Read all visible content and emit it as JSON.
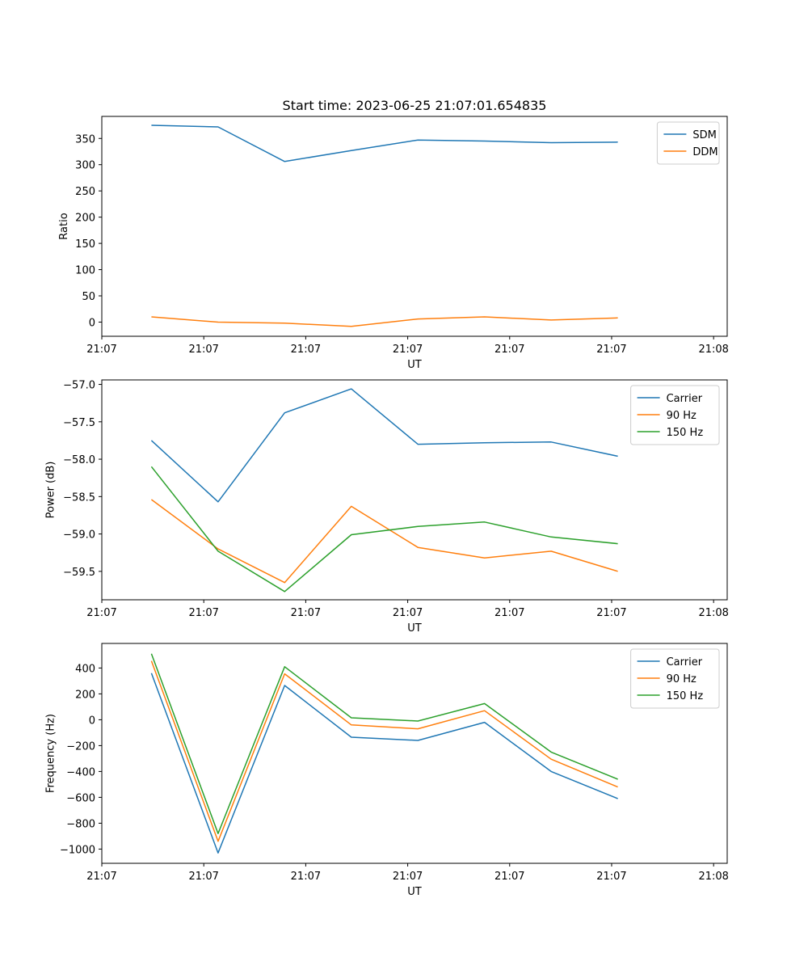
{
  "figure": {
    "title": "Start time: 2023-06-25 21:07:01.654835"
  },
  "colors": {
    "series1": "#1f77b4",
    "series2": "#ff7f0e",
    "series3": "#2ca02c",
    "axes": "#000000",
    "legend_border": "#cccccc"
  },
  "chart_data": [
    {
      "id": "ratio",
      "type": "line",
      "title": "Start time: 2023-06-25 21:07:01.654835",
      "xlabel": "UT",
      "ylabel": "Ratio",
      "xlim": [
        0,
        9.2
      ],
      "ylim": [
        -27,
        392
      ],
      "x_tick_positions": [
        0,
        1.5,
        3,
        4.5,
        6,
        7.5,
        9
      ],
      "x_tick_labels": [
        "21:07",
        "21:07",
        "21:07",
        "21:07",
        "21:07",
        "21:07",
        "21:08"
      ],
      "y_ticks": [
        0,
        50,
        100,
        150,
        200,
        250,
        300,
        350
      ],
      "y_tick_labels": [
        "0",
        "50",
        "100",
        "150",
        "200",
        "250",
        "300",
        "350"
      ],
      "x": [
        0.73,
        1.71,
        2.69,
        3.67,
        4.65,
        5.63,
        6.61,
        7.59
      ],
      "series": [
        {
          "name": "SDM",
          "color": "#1f77b4",
          "values": [
            375,
            372,
            306,
            327,
            347,
            345,
            342,
            343
          ]
        },
        {
          "name": "DDM",
          "color": "#ff7f0e",
          "values": [
            10,
            0,
            -2,
            -8,
            6,
            10,
            4,
            8
          ]
        }
      ],
      "legend": "upper right",
      "grid": false
    },
    {
      "id": "power",
      "type": "line",
      "title": "",
      "xlabel": "UT",
      "ylabel": "Power (dB)",
      "xlim": [
        0,
        9.2
      ],
      "ylim": [
        -59.88,
        -56.94
      ],
      "x_tick_positions": [
        0,
        1.5,
        3,
        4.5,
        6,
        7.5,
        9
      ],
      "x_tick_labels": [
        "21:07",
        "21:07",
        "21:07",
        "21:07",
        "21:07",
        "21:07",
        "21:08"
      ],
      "y_ticks": [
        -59.5,
        -59.0,
        -58.5,
        -58.0,
        -57.5,
        -57.0
      ],
      "y_tick_labels": [
        "−59.5",
        "−59.0",
        "−58.5",
        "−58.0",
        "−57.5",
        "−57.0"
      ],
      "x": [
        0.73,
        1.71,
        2.69,
        3.67,
        4.65,
        5.63,
        6.61,
        7.59
      ],
      "series": [
        {
          "name": "Carrier",
          "color": "#1f77b4",
          "values": [
            -57.75,
            -58.57,
            -57.38,
            -57.06,
            -57.8,
            -57.78,
            -57.77,
            -57.96
          ]
        },
        {
          "name": "90 Hz",
          "color": "#ff7f0e",
          "values": [
            -58.54,
            -59.2,
            -59.65,
            -58.63,
            -59.18,
            -59.32,
            -59.23,
            -59.5
          ]
        },
        {
          "name": "150 Hz",
          "color": "#2ca02c",
          "values": [
            -58.1,
            -59.23,
            -59.77,
            -59.01,
            -58.9,
            -58.84,
            -59.04,
            -59.13
          ]
        }
      ],
      "legend": "upper right",
      "grid": false
    },
    {
      "id": "frequency",
      "type": "line",
      "title": "",
      "xlabel": "UT",
      "ylabel": "Frequency (Hz)",
      "xlim": [
        0,
        9.2
      ],
      "ylim": [
        -1110,
        590
      ],
      "x_tick_positions": [
        0,
        1.5,
        3,
        4.5,
        6,
        7.5,
        9
      ],
      "x_tick_labels": [
        "21:07",
        "21:07",
        "21:07",
        "21:07",
        "21:07",
        "21:07",
        "21:08"
      ],
      "y_ticks": [
        -1000,
        -800,
        -600,
        -400,
        -200,
        0,
        200,
        400
      ],
      "y_tick_labels": [
        "−1000",
        "−800",
        "−600",
        "−400",
        "−200",
        "0",
        "200",
        "400"
      ],
      "x": [
        0.73,
        1.71,
        2.69,
        3.67,
        4.65,
        5.63,
        6.61,
        7.59
      ],
      "series": [
        {
          "name": "Carrier",
          "color": "#1f77b4",
          "values": [
            360,
            -1030,
            265,
            -135,
            -160,
            -20,
            -400,
            -610
          ]
        },
        {
          "name": "90 Hz",
          "color": "#ff7f0e",
          "values": [
            455,
            -940,
            355,
            -40,
            -70,
            70,
            -305,
            -520
          ]
        },
        {
          "name": "150 Hz",
          "color": "#2ca02c",
          "values": [
            510,
            -880,
            410,
            15,
            -10,
            125,
            -250,
            -460
          ]
        }
      ],
      "legend": "upper right",
      "grid": false
    }
  ]
}
